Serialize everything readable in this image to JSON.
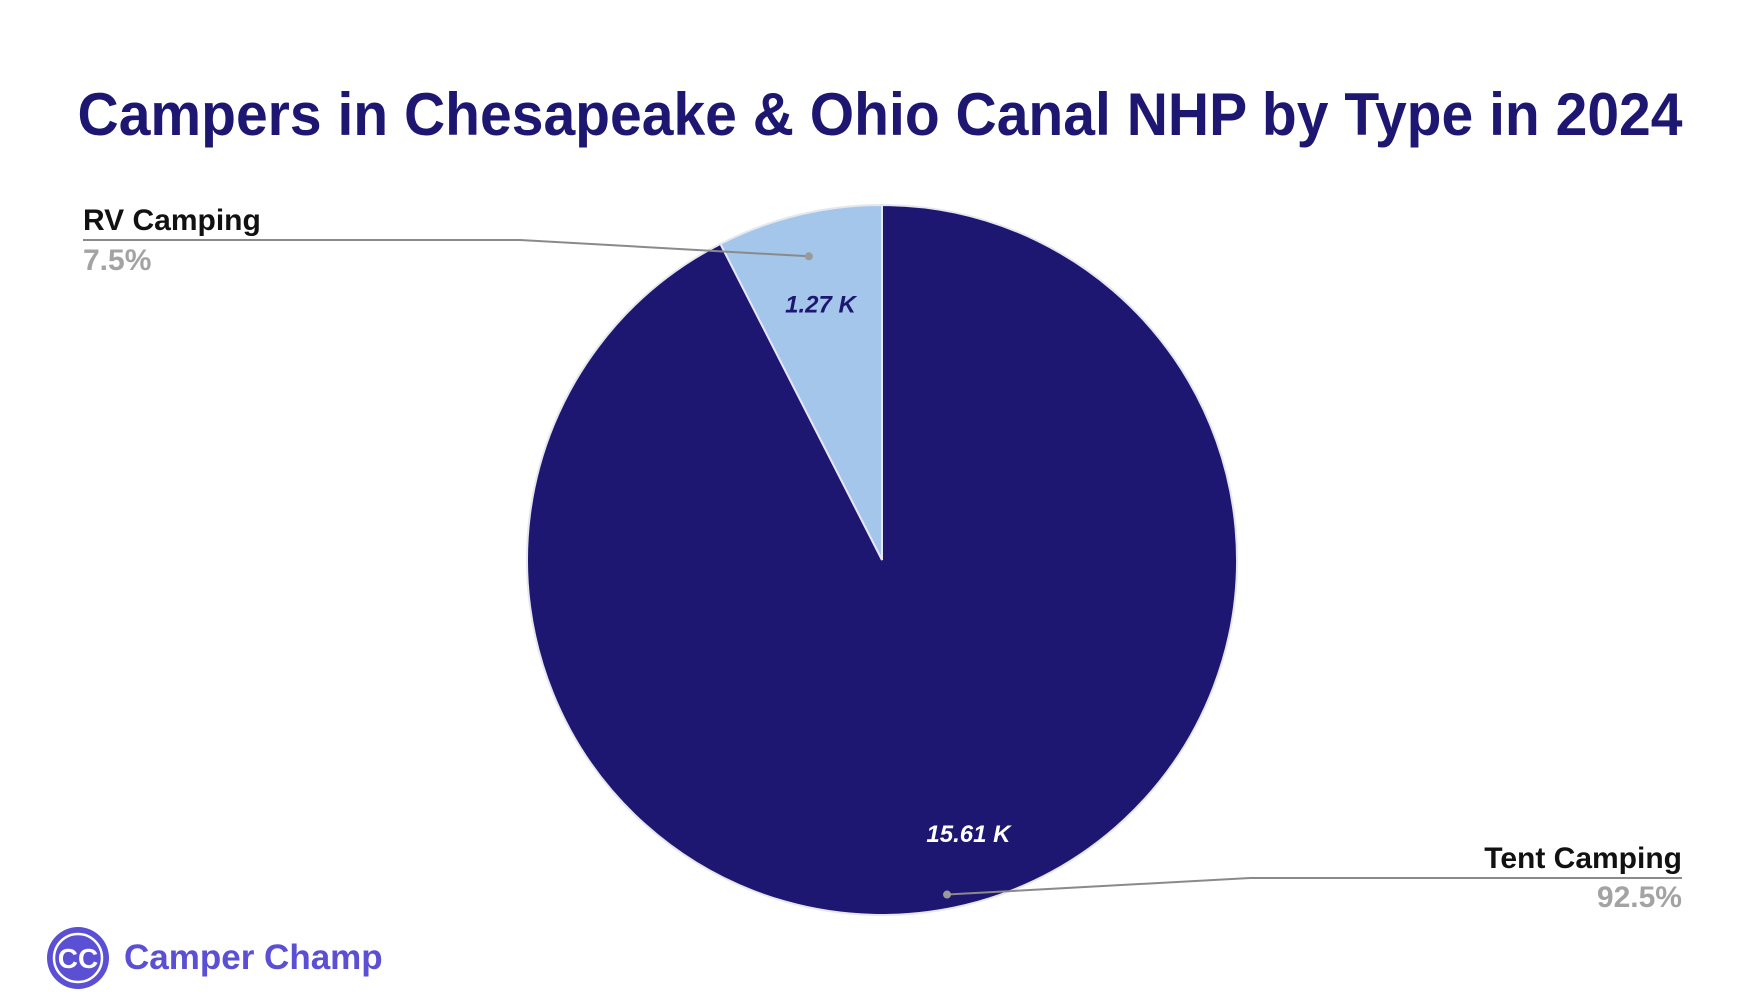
{
  "chart_data": {
    "type": "pie",
    "title": "Campers in Chesapeake & Ohio Canal NHP by Type in 2024",
    "slices": [
      {
        "name": "RV Camping",
        "value": 1.27,
        "value_label": "1.27 K",
        "percent_label": "7.5%",
        "color": "#a3c6ea"
      },
      {
        "name": "Tent Camping",
        "value": 15.61,
        "value_label": "15.61 K",
        "percent_label": "92.5%",
        "color": "#1e1772"
      }
    ],
    "start_angle": "12 o'clock",
    "direction": "counter-clockwise",
    "legend": "leader-lines"
  },
  "brand": {
    "name": "Camper Champ",
    "logo_text": "CC",
    "color": "#5b4fd4"
  }
}
